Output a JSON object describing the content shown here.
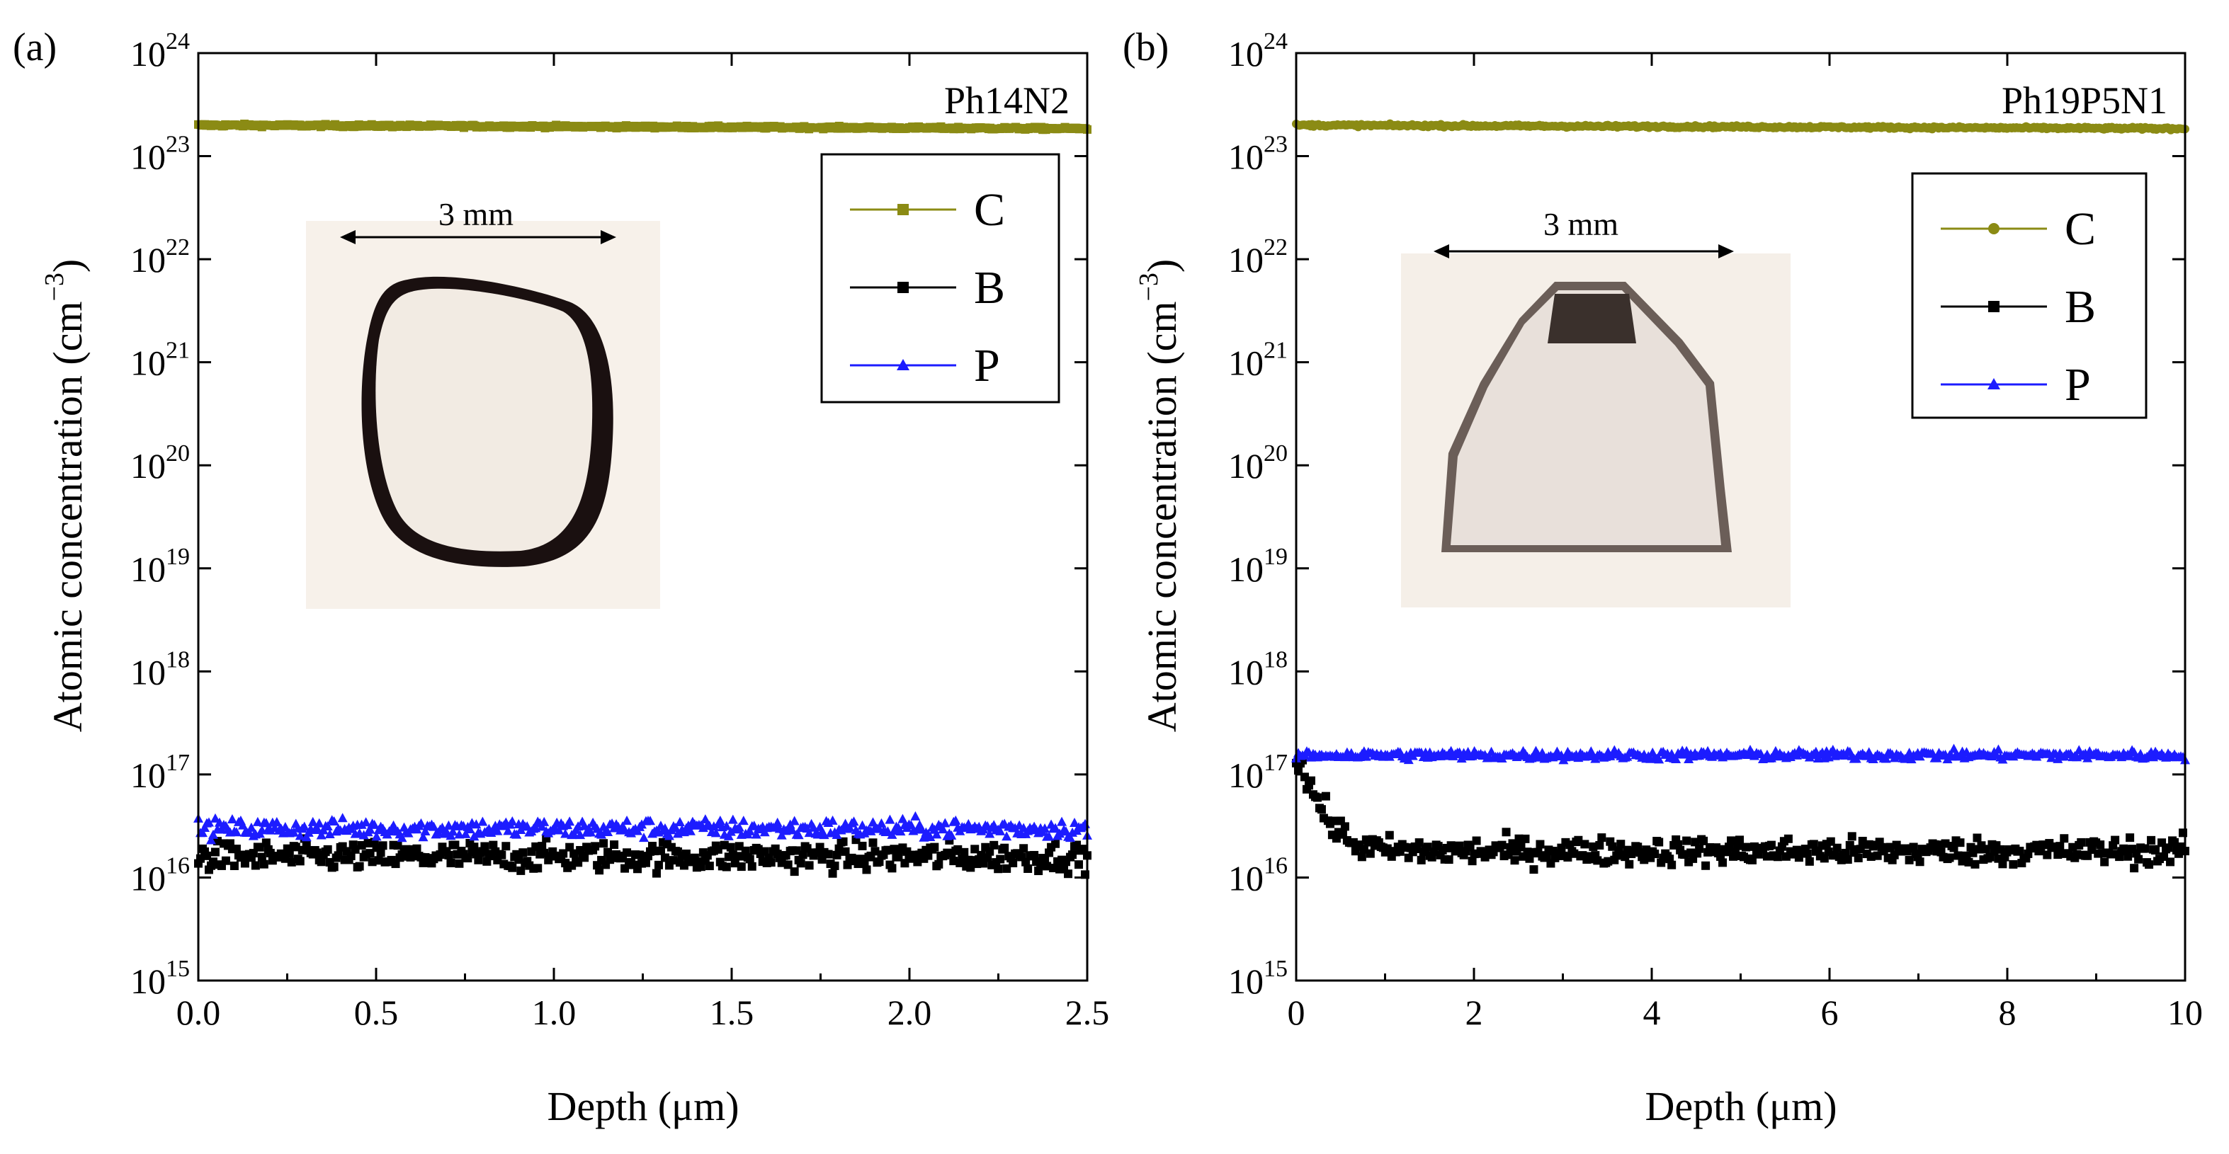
{
  "figure_panels": [
    "(a)",
    "(b)"
  ],
  "chart_data": [
    {
      "panel": "(a)",
      "type": "scatter",
      "title": "Ph14N2",
      "xlabel": "Depth (μm)",
      "ylabel": "Atomic concentration (cm⁻³)",
      "xlim": [
        0,
        2.5
      ],
      "ylim": [
        1000000000000000.0,
        1e+24
      ],
      "yscale": "log",
      "xticks": [
        "0.0",
        "0.5",
        "1.0",
        "1.5",
        "2.0",
        "2.5"
      ],
      "xtick_values": [
        0,
        0.5,
        1.0,
        1.5,
        2.0,
        2.5
      ],
      "yticks": [
        15,
        16,
        17,
        18,
        19,
        20,
        21,
        22,
        23,
        24
      ],
      "legend_position": "upper-right",
      "inset": {
        "scale_label": "3 mm",
        "description": "round diamond plate micrograph"
      },
      "series": [
        {
          "name": "C",
          "color": "#8b8b14",
          "marker": "square",
          "level": 2e+23,
          "end_level": 1.85e+23,
          "noise_decades": 0.012
        },
        {
          "name": "B",
          "color": "#000000",
          "marker": "square",
          "level": 1.6e+16,
          "noise_decades": 0.14
        },
        {
          "name": "P",
          "color": "#1c1cff",
          "marker": "triangle",
          "level": 3e+16,
          "noise_decades": 0.09
        }
      ]
    },
    {
      "panel": "(b)",
      "type": "scatter",
      "title": "Ph19P5N1",
      "xlabel": "Depth (μm)",
      "ylabel": "Atomic concentration (cm⁻³)",
      "xlim": [
        0,
        10
      ],
      "ylim": [
        1000000000000000.0,
        1e+24
      ],
      "yscale": "log",
      "xticks": [
        "0",
        "2",
        "4",
        "6",
        "8",
        "10"
      ],
      "xtick_values": [
        0,
        2,
        4,
        6,
        8,
        10
      ],
      "yticks": [
        15,
        16,
        17,
        18,
        19,
        20,
        21,
        22,
        23,
        24
      ],
      "legend_position": "upper-right",
      "inset": {
        "scale_label": "3 mm",
        "description": "trapezoid diamond plate micrograph"
      },
      "series": [
        {
          "name": "C",
          "color": "#8b8b14",
          "marker": "circle",
          "level": 2e+23,
          "end_level": 1.85e+23,
          "noise_decades": 0.012
        },
        {
          "name": "B",
          "color": "#000000",
          "marker": "square",
          "level": 1.8e+16,
          "surface_peak": 1.6e+17,
          "noise_decades": 0.13
        },
        {
          "name": "P",
          "color": "#1c1cff",
          "marker": "triangle",
          "level": 1.55e+17,
          "noise_decades": 0.045
        }
      ]
    }
  ]
}
